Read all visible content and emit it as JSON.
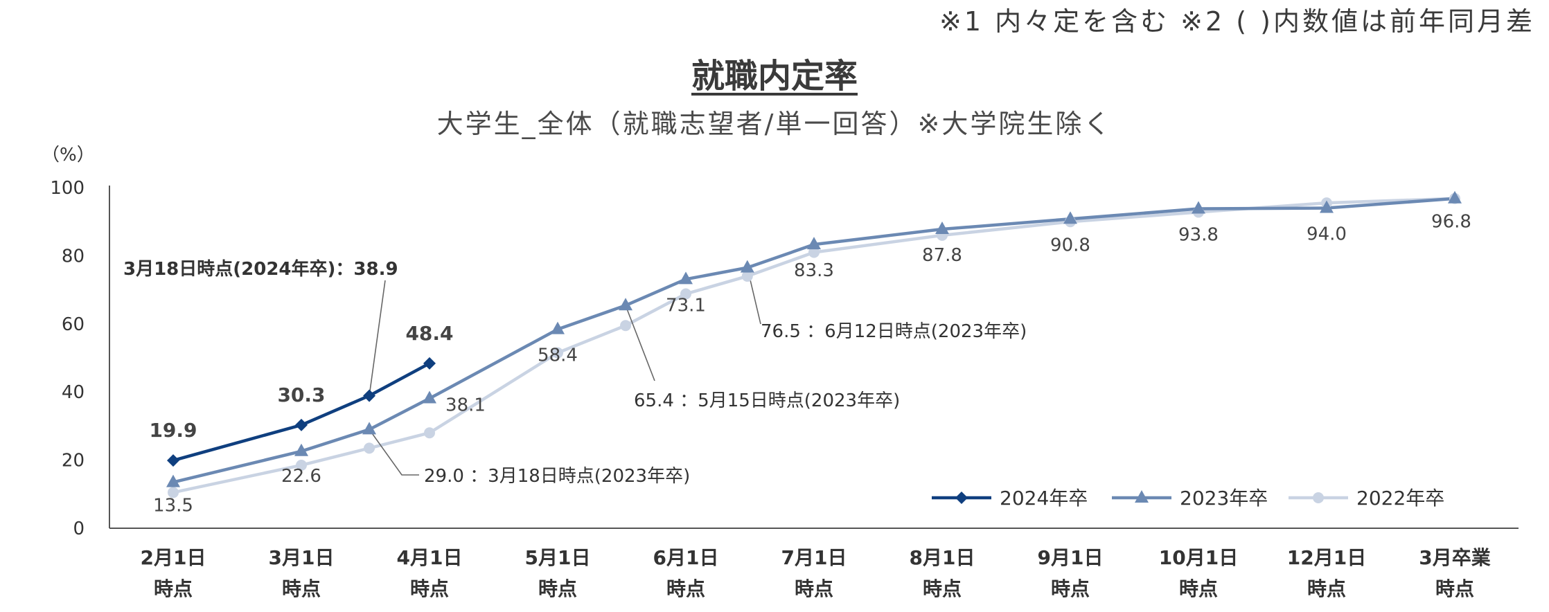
{
  "header": {
    "note": "※1 内々定を含む ※2 ( )内数値は前年同月差"
  },
  "chart_data": {
    "type": "line",
    "title": "就職内定率",
    "subtitle": "大学生_全体（就職志望者/単一回答）※大学院生除く",
    "ylabel": "（%）",
    "ylim": [
      0,
      100
    ],
    "yticks": [
      0,
      20,
      40,
      60,
      80,
      100
    ],
    "categories": [
      [
        "2月1日",
        "時点"
      ],
      [
        "3月1日",
        "時点"
      ],
      [
        "4月1日",
        "時点"
      ],
      [
        "5月1日",
        "時点"
      ],
      [
        "6月1日",
        "時点"
      ],
      [
        "7月1日",
        "時点"
      ],
      [
        "8月1日",
        "時点"
      ],
      [
        "9月1日",
        "時点"
      ],
      [
        "10月1日",
        "時点"
      ],
      [
        "12月1日",
        "時点"
      ],
      [
        "3月卒業",
        "時点"
      ]
    ],
    "legend_position": "bottom-right",
    "series": [
      {
        "name": "2024年卒",
        "color": "#0f3f7f",
        "marker": "diamond",
        "points": [
          [
            0,
            19.9
          ],
          [
            1,
            30.3
          ],
          [
            1.53,
            38.9
          ],
          [
            2,
            48.4
          ]
        ],
        "labels": [
          {
            "index": 0,
            "text": "19.9"
          },
          {
            "index": 1,
            "text": "30.3"
          },
          {
            "index": 3,
            "text": "48.4"
          }
        ]
      },
      {
        "name": "2023年卒",
        "color": "#6b89b3",
        "marker": "triangle",
        "points": [
          [
            0,
            13.5
          ],
          [
            1,
            22.6
          ],
          [
            1.53,
            29.0
          ],
          [
            2,
            38.1
          ],
          [
            3,
            58.4
          ],
          [
            3.53,
            65.4
          ],
          [
            4,
            73.1
          ],
          [
            4.48,
            76.5
          ],
          [
            5,
            83.3
          ],
          [
            6,
            87.8
          ],
          [
            7,
            90.8
          ],
          [
            8,
            93.8
          ],
          [
            9,
            94.0
          ],
          [
            10,
            96.8
          ]
        ],
        "labels": [
          {
            "index": 0,
            "text": "13.5"
          },
          {
            "index": 1,
            "text": "22.6"
          },
          {
            "index": 3,
            "text": "38.1"
          },
          {
            "index": 4,
            "text": "58.4"
          },
          {
            "index": 6,
            "text": "73.1"
          },
          {
            "index": 8,
            "text": "83.3"
          },
          {
            "index": 9,
            "text": "87.8"
          },
          {
            "index": 10,
            "text": "90.8"
          },
          {
            "index": 11,
            "text": "93.8"
          },
          {
            "index": 12,
            "text": "94.0"
          },
          {
            "index": 13,
            "text": "96.8"
          }
        ]
      },
      {
        "name": "2022年卒",
        "color": "#c9d3e3",
        "marker": "circle",
        "points": [
          [
            0,
            10.5
          ],
          [
            1,
            18.5
          ],
          [
            1.53,
            23.5
          ],
          [
            2,
            28.0
          ],
          [
            3,
            51.5
          ],
          [
            3.53,
            59.5
          ],
          [
            4,
            68.8
          ],
          [
            4.48,
            74.0
          ],
          [
            5,
            81.0
          ],
          [
            6,
            86.0
          ],
          [
            7,
            90.0
          ],
          [
            8,
            92.8
          ],
          [
            9,
            95.5
          ],
          [
            10,
            96.8
          ]
        ]
      }
    ],
    "annotations": [
      {
        "series": 0,
        "index": 2,
        "text": "3月18日時点(2024年卒)：38.9"
      },
      {
        "series": 1,
        "index": 2,
        "text": "29.0 ：3月18日時点(2023年卒)"
      },
      {
        "series": 1,
        "index": 5,
        "text": "65.4 ：5月15日時点(2023年卒)"
      },
      {
        "series": 1,
        "index": 7,
        "text": "76.5 ：6月12日時点(2023年卒)"
      }
    ]
  }
}
